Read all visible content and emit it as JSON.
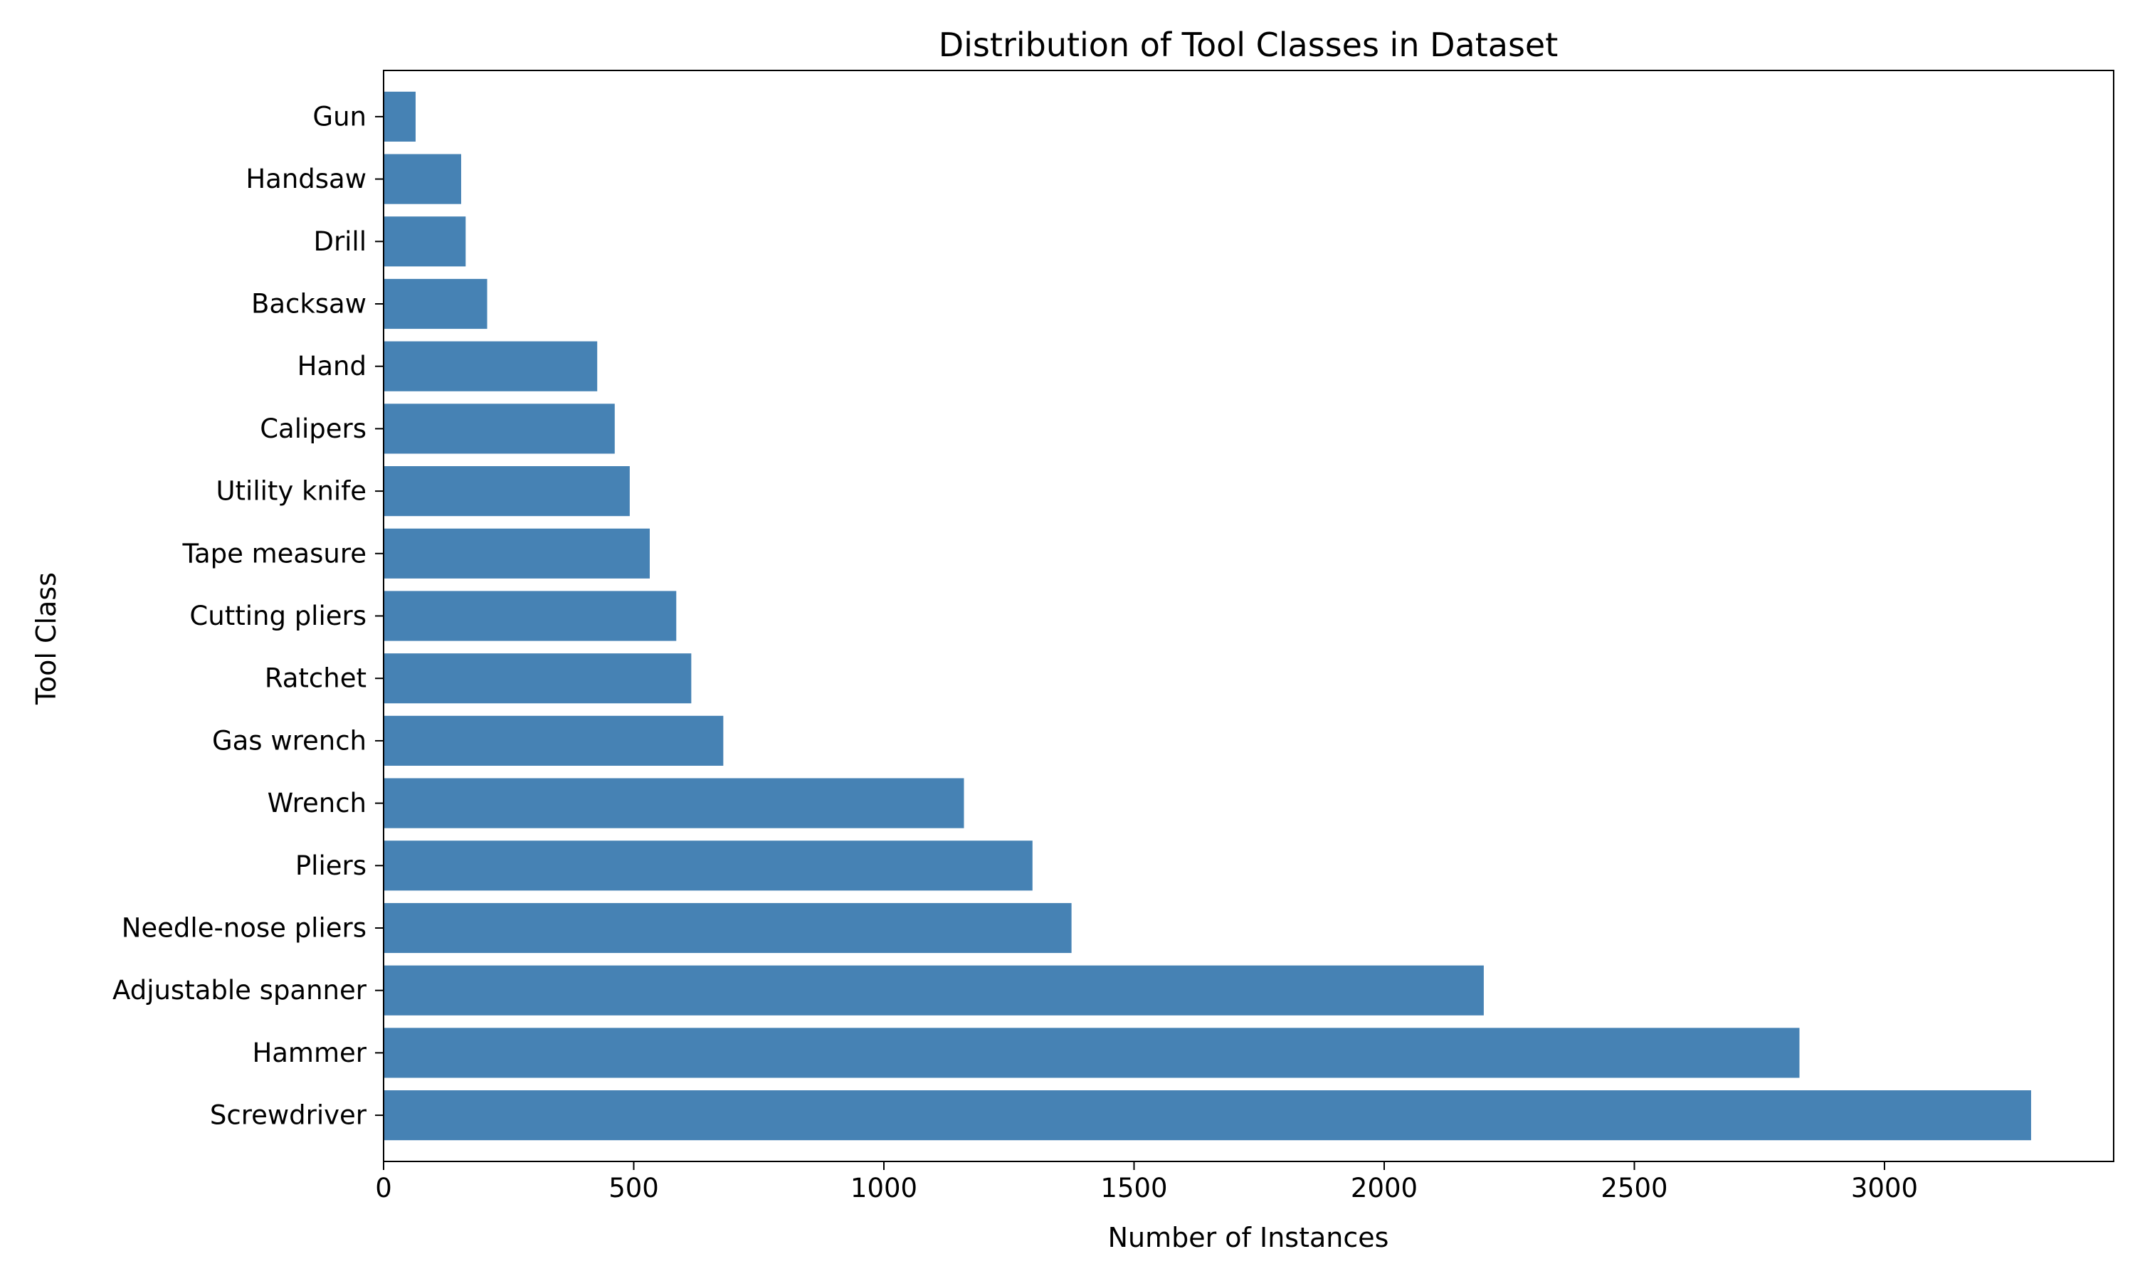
{
  "colors": {
    "bar": "#4682b4",
    "axes": "#000000",
    "background": "#ffffff"
  },
  "chart_data": {
    "type": "bar",
    "orientation": "horizontal",
    "title": "Distribution of Tool Classes in Dataset",
    "xlabel": "Number of Instances",
    "ylabel": "Tool Class",
    "categories": [
      "Screwdriver",
      "Hammer",
      "Adjustable spanner",
      "Needle-nose pliers",
      "Pliers",
      "Wrench",
      "Gas wrench",
      "Ratchet",
      "Cutting pliers",
      "Tape measure",
      "Utility knife",
      "Calipers",
      "Hand",
      "Backsaw",
      "Drill",
      "Handsaw",
      "Gun"
    ],
    "values": [
      3293,
      2830,
      2199,
      1375,
      1297,
      1160,
      679,
      615,
      585,
      532,
      492,
      462,
      427,
      207,
      164,
      155,
      64
    ],
    "xlim": [
      0,
      3458
    ],
    "xticks": [
      0,
      500,
      1000,
      1500,
      2000,
      2500,
      3000
    ],
    "xtick_labels": [
      "0",
      "500",
      "1000",
      "1500",
      "2000",
      "2500",
      "3000"
    ],
    "grid": false,
    "legend": "none"
  }
}
